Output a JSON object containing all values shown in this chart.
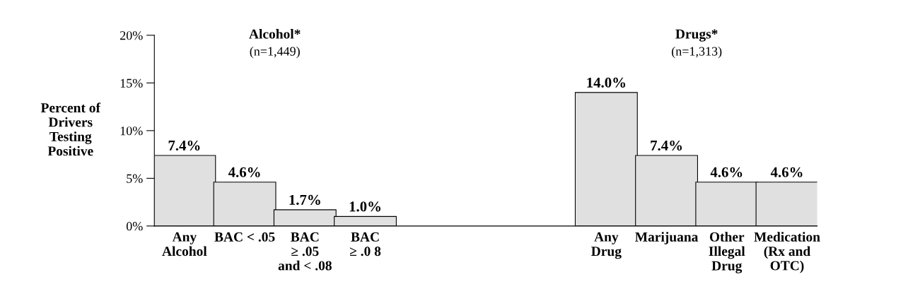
{
  "chart_data": {
    "type": "bar",
    "ylabel": "Percent of\nDrivers\nTesting\nPositive",
    "annotations": [
      "Alcohol*",
      "(n=1,449)",
      "Drugs*",
      "(n=1,313)"
    ],
    "categories": [
      "Any\nAlcohol",
      "BAC < .05",
      "BAC\n≥ .05\nand < .08",
      "BAC\n≥ .0 8",
      null,
      null,
      null,
      "Any\nDrug",
      "Marijuana",
      "Other\nIllegal\nDrug",
      "Medication\n(Rx and\nOTC)"
    ],
    "values": [
      7.4,
      4.6,
      1.7,
      1.0,
      null,
      null,
      null,
      14.0,
      7.4,
      4.6,
      4.6
    ],
    "value_labels": [
      "7.4%",
      "4.6%",
      "1.7%",
      "1.0%",
      null,
      null,
      null,
      "14.0%",
      "7.4%",
      "4.6%",
      "4.6%"
    ],
    "color": "#e0e0e0",
    "ylim": [
      0,
      20
    ],
    "yticks": [
      {
        "value": 0,
        "label": "0%"
      },
      {
        "value": 5,
        "label": "5%"
      },
      {
        "value": 10,
        "label": "10%"
      },
      {
        "value": 15,
        "label": "15%"
      },
      {
        "value": 20,
        "label": "20%"
      }
    ],
    "grid": false,
    "legend": false
  }
}
